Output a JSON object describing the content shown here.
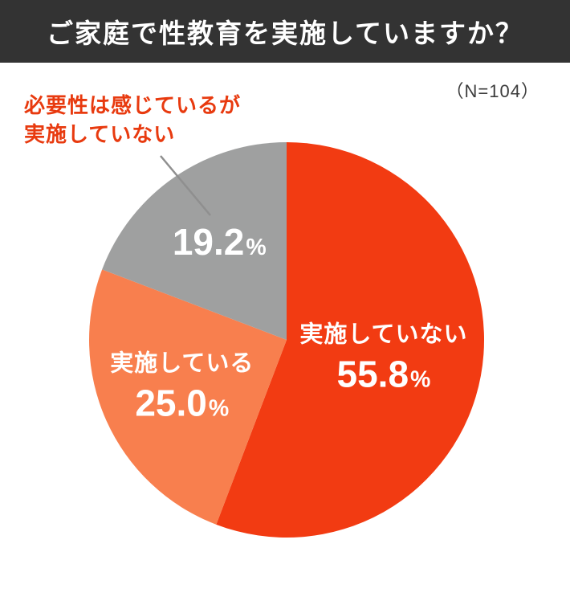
{
  "header": {
    "title": "ご家庭で性教育を実施していますか？"
  },
  "sample_size_label": "（N=104）",
  "annotation": {
    "line1": "必要性は感じているが",
    "line2": "実施していない"
  },
  "chart_data": {
    "type": "pie",
    "title": "ご家庭で性教育を実施していますか？",
    "sample_size": 104,
    "unit": "%",
    "start_at": "top",
    "direction": "clockwise",
    "slices": [
      {
        "label": "実施していない",
        "value": 55.8,
        "display": "55.8",
        "color": "#f23b12",
        "label_inside": true
      },
      {
        "label": "実施している",
        "value": 25.0,
        "display": "25.0",
        "color": "#f87f4e",
        "label_inside": true
      },
      {
        "label": "必要性は感じているが実施していない",
        "value": 19.2,
        "display": "19.2",
        "color": "#9fa0a0",
        "label_inside": false
      }
    ]
  },
  "colors": {
    "background": "#ffffff",
    "header_bg": "#333333",
    "header_text": "#ffffff",
    "annotation_text": "#e83a0f",
    "leader_line": "#8f8f8f",
    "note_text": "#3c3c3c",
    "slice_label_text": "#ffffff"
  }
}
